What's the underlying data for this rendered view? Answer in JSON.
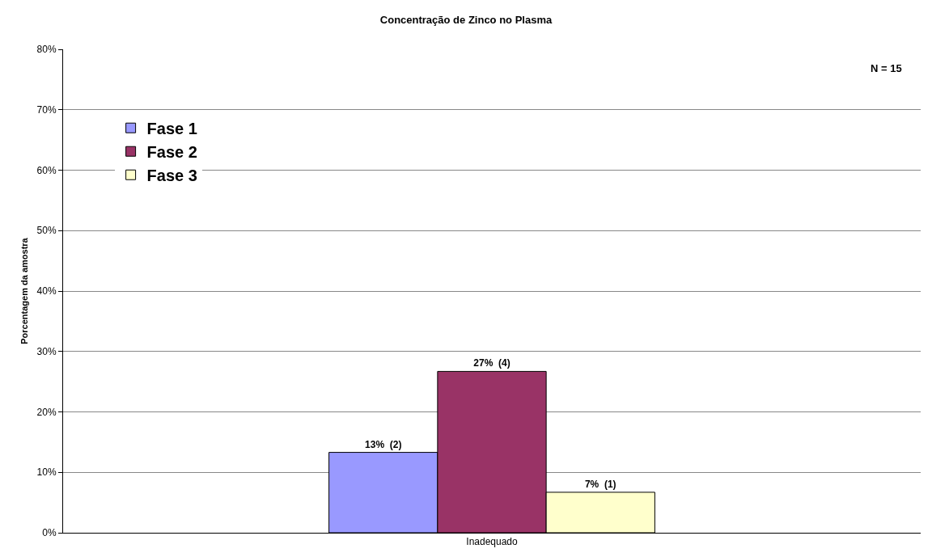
{
  "chart_data": {
    "type": "bar",
    "title": "Concentração de Zinco no Plasma",
    "ylabel": "Porcentagem da amostra",
    "xlabel": null,
    "categories": [
      "Inadequado"
    ],
    "series": [
      {
        "name": "Fase 1",
        "color": "#9999ff",
        "values": [
          13.3
        ],
        "value_labels": [
          "13%  (2)"
        ]
      },
      {
        "name": "Fase 2",
        "color": "#993366",
        "values": [
          26.7
        ],
        "value_labels": [
          "27%  (4)"
        ]
      },
      {
        "name": "Fase 3",
        "color": "#ffffcc",
        "values": [
          6.7
        ],
        "value_labels": [
          "7%  (1)"
        ]
      }
    ],
    "ylim": [
      0,
      80
    ],
    "yticks": [
      {
        "value": 0,
        "label": "0%"
      },
      {
        "value": 10,
        "label": "10%"
      },
      {
        "value": 20,
        "label": "20%"
      },
      {
        "value": 30,
        "label": "30%"
      },
      {
        "value": 40,
        "label": "40%"
      },
      {
        "value": 50,
        "label": "50%"
      },
      {
        "value": 60,
        "label": "60%"
      },
      {
        "value": 70,
        "label": "70%"
      },
      {
        "value": 80,
        "label": "80%"
      }
    ],
    "grid": "y",
    "legend": "top left",
    "annotations": [
      "N = 15"
    ]
  }
}
